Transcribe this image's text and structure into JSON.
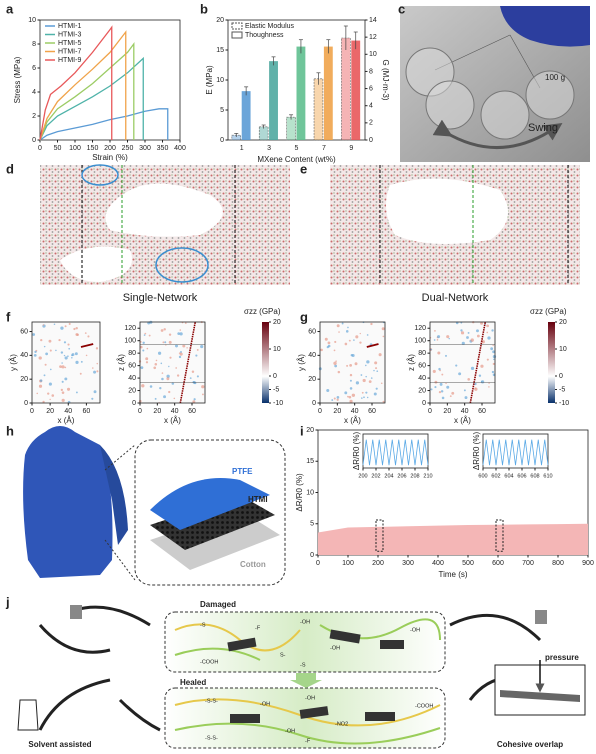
{
  "panel_labels": [
    "a",
    "b",
    "c",
    "d",
    "e",
    "f",
    "g",
    "h",
    "i",
    "j"
  ],
  "chart_data": [
    {
      "type": "line",
      "xlabel": "Strain (%)",
      "ylabel": "Stress (MPa)",
      "xlim": [
        0,
        400
      ],
      "xticks": [
        0,
        50,
        100,
        150,
        200,
        250,
        300,
        350,
        400
      ],
      "ylim": [
        0,
        10
      ],
      "yticks": [
        0,
        2,
        4,
        6,
        8,
        10
      ],
      "legend": "upper left",
      "series": [
        {
          "name": "HTMI-1",
          "color": "#5b9bd5",
          "x": [
            0,
            20,
            50,
            100,
            150,
            200,
            250,
            300,
            340,
            365,
            365
          ],
          "values": [
            0,
            0.4,
            0.7,
            1.0,
            1.3,
            1.7,
            2.0,
            2.4,
            2.6,
            2.6,
            0
          ]
        },
        {
          "name": "HTMI-3",
          "color": "#4fb3a9",
          "x": [
            0,
            20,
            50,
            100,
            150,
            200,
            250,
            295,
            295
          ],
          "values": [
            0,
            1.2,
            2.0,
            2.8,
            3.6,
            4.5,
            5.6,
            6.8,
            0
          ]
        },
        {
          "name": "HTMI-5",
          "color": "#9ccc65",
          "x": [
            0,
            20,
            50,
            100,
            150,
            200,
            250,
            268,
            268
          ],
          "values": [
            0,
            1.5,
            2.6,
            3.6,
            4.7,
            6.0,
            7.3,
            8.0,
            0
          ]
        },
        {
          "name": "HTMI-7",
          "color": "#f0a34a",
          "x": [
            0,
            20,
            50,
            100,
            150,
            200,
            245,
            245
          ],
          "values": [
            0,
            1.8,
            3.2,
            4.6,
            5.9,
            7.3,
            9.0,
            0
          ]
        },
        {
          "name": "HTMI-9",
          "color": "#e8585a",
          "x": [
            0,
            15,
            30,
            60,
            100,
            150,
            200,
            205,
            205
          ],
          "values": [
            0,
            2.5,
            3.8,
            4.5,
            5.6,
            7.3,
            9.2,
            9.4,
            0
          ]
        }
      ]
    },
    {
      "type": "bar",
      "xlabel": "MXene Content (wt%)",
      "ylabel": "E (MPa)",
      "y2label": "G (MJ·m-3)",
      "categories": [
        "1",
        "3",
        "5",
        "7",
        "9"
      ],
      "colors": [
        "#5b9bd5",
        "#4fa8a0",
        "#5fbf8f",
        "#f0a34a",
        "#e8585a"
      ],
      "ylim": [
        0,
        20
      ],
      "yticks": [
        0,
        5,
        10,
        15,
        20
      ],
      "y2lim": [
        0,
        14
      ],
      "y2ticks": [
        0,
        2,
        4,
        6,
        8,
        10,
        12,
        14
      ],
      "legend": "upper left",
      "series": [
        {
          "name": "Elastic Modulus",
          "style": "dashed",
          "values": [
            0.8,
            2.2,
            3.8,
            10.2,
            17.0
          ],
          "errors": [
            0.3,
            0.3,
            0.4,
            1.0,
            2.0
          ]
        },
        {
          "name": "Thoughness",
          "style": "solid",
          "axis": "y2",
          "values": [
            5.7,
            9.2,
            10.9,
            10.9,
            11.6
          ],
          "errors": [
            0.5,
            0.5,
            0.8,
            0.8,
            1.0
          ]
        }
      ]
    },
    {
      "type": "area",
      "xlabel": "Time (s)",
      "ylabel": "ΔR/R0 (%)",
      "xlim": [
        0,
        900
      ],
      "xticks": [
        0,
        100,
        200,
        300,
        400,
        500,
        600,
        700,
        800,
        900
      ],
      "ylim": [
        0,
        20
      ],
      "yticks": [
        0,
        5,
        10,
        15,
        20
      ],
      "color": "#f4b6b6",
      "x": [
        0,
        100,
        200,
        300,
        400,
        500,
        600,
        700,
        800,
        900
      ],
      "values": [
        3.6,
        4.4,
        4.5,
        4.6,
        4.7,
        4.8,
        4.85,
        4.9,
        4.95,
        5.0
      ],
      "insets": [
        {
          "type": "line",
          "ylabel": "ΔR/R0 (%)",
          "xlim": [
            200,
            210
          ],
          "xticks": [
            200,
            202,
            204,
            206,
            208,
            210
          ],
          "ylim": [
            0,
            6
          ],
          "color": "#5aa9e6",
          "x": [
            200,
            200.5,
            201,
            201.5,
            202,
            202.5,
            203,
            203.5,
            204,
            204.5,
            205,
            205.5,
            206,
            206.5,
            207,
            207.5,
            208,
            208.5,
            209,
            209.5,
            210
          ],
          "values": [
            0.5,
            5,
            0.5,
            5,
            0.5,
            5,
            0.5,
            5,
            0.5,
            5,
            0.5,
            5,
            0.5,
            5,
            0.5,
            5,
            0.5,
            5,
            0.5,
            5,
            0.5
          ]
        },
        {
          "type": "line",
          "ylabel": "ΔR/R0 (%)",
          "xlim": [
            600,
            610
          ],
          "xticks": [
            600,
            602,
            604,
            606,
            608,
            610
          ],
          "ylim": [
            0,
            6
          ],
          "color": "#5aa9e6",
          "x": [
            600,
            600.5,
            601,
            601.5,
            602,
            602.5,
            603,
            603.5,
            604,
            604.5,
            605,
            605.5,
            606,
            606.5,
            607,
            607.5,
            608,
            608.5,
            609,
            609.5,
            610
          ],
          "values": [
            0.5,
            5,
            0.5,
            5,
            0.5,
            5,
            0.5,
            5,
            0.5,
            5,
            0.5,
            5,
            0.5,
            5,
            0.5,
            5,
            0.5,
            5,
            0.5,
            5,
            0.5
          ]
        }
      ]
    }
  ],
  "panel_c": {
    "mass": "100 g",
    "motion": "Swing"
  },
  "panel_d": {
    "caption": "Single-Network"
  },
  "panel_e": {
    "caption": "Dual-Network"
  },
  "stress_maps": {
    "colorbar_title": "σzz (GPa)",
    "clim": [
      -10,
      20
    ],
    "colorbar_ticks": [
      20,
      10,
      0,
      -5,
      -10
    ],
    "panels": [
      {
        "xlabel": "x (Å)",
        "ylabel": "y (Å)",
        "xlim": [
          0,
          75
        ],
        "xticks": [
          0,
          20,
          40,
          60
        ],
        "ylim": [
          0,
          68
        ],
        "yticks": [
          0,
          20,
          40,
          60
        ]
      },
      {
        "xlabel": "x (Å)",
        "ylabel": "z (Å)",
        "xlim": [
          0,
          75
        ],
        "xticks": [
          0,
          20,
          40,
          60
        ],
        "ylim": [
          0,
          130
        ],
        "yticks": [
          0,
          20,
          40,
          60,
          80,
          100,
          120
        ]
      },
      {
        "xlabel": "x (Å)",
        "ylabel": "y (Å)",
        "xlim": [
          0,
          75
        ],
        "xticks": [
          0,
          20,
          40,
          60
        ],
        "ylim": [
          0,
          68
        ],
        "yticks": [
          0,
          20,
          40,
          60
        ]
      },
      {
        "xlabel": "x (Å)",
        "ylabel": "z (Å)",
        "xlim": [
          0,
          75
        ],
        "xticks": [
          0,
          20,
          40,
          60
        ],
        "ylim": [
          0,
          130
        ],
        "yticks": [
          0,
          20,
          40,
          60,
          80,
          100,
          120
        ]
      }
    ]
  },
  "panel_h": {
    "layers": [
      "PTFE",
      "HTMI",
      "Cotton"
    ]
  },
  "panel_j": {
    "damaged": "Damaged",
    "healed": "Healed",
    "solvent": "Solvent assisted",
    "overlap": "Cohesive overlap",
    "pressure": "pressure",
    "damaged_groups": [
      "-S",
      "-OH",
      "-F",
      "-OH",
      "S-",
      "-OH",
      "-COOH",
      "-S"
    ],
    "healed_groups": [
      "-S-S-",
      "-OH",
      "-OH",
      "-NO2",
      "-OH",
      "-COOH",
      "-S-S-",
      "-F"
    ]
  }
}
